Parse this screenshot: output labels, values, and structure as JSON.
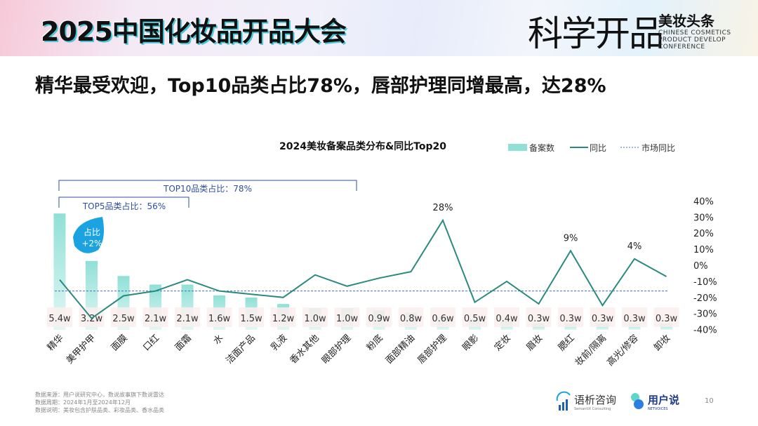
{
  "banner": {
    "title": "2025中国化妆品开品大会",
    "slogan": "科学开品",
    "brand": "美妆头条",
    "english_lines": [
      "CHINESE COSMETICS",
      "PRODUCT DEVELOP",
      "CONFERENCE"
    ]
  },
  "headline": "精华最受欢迎，Top10品类占比78%，唇部护理同增最高，达28%",
  "chart_data": {
    "type": "bar+line",
    "title": "2024美妆备案品类分布&同比Top20",
    "legend": [
      "备案数",
      "同比",
      "市场同比"
    ],
    "legend_placement": "top-right",
    "categories": [
      "精华",
      "美甲护甲",
      "面膜",
      "口红",
      "面霜",
      "水",
      "洁面产品",
      "乳液",
      "香水其他",
      "眼部护理",
      "粉底",
      "面部精油",
      "唇部护理",
      "眼影",
      "定妆",
      "眉妆",
      "腮红",
      "妆前/隔离",
      "高光/修容",
      "卸妆"
    ],
    "series": [
      {
        "name": "备案数",
        "type": "bar",
        "unit": "w",
        "values": [
          5.4,
          3.2,
          2.5,
          2.1,
          2.1,
          1.6,
          1.5,
          1.2,
          1.0,
          1.0,
          0.9,
          0.8,
          0.6,
          0.5,
          0.4,
          0.3,
          0.3,
          0.3,
          0.3,
          0.3
        ],
        "labels": [
          "5.4w",
          "3.2w",
          "2.5w",
          "2.1w",
          "2.1w",
          "1.6w",
          "1.5w",
          "1.2w",
          "1.0w",
          "1.0w",
          "0.9w",
          "0.8w",
          "0.6w",
          "0.5w",
          "0.4w",
          "0.3w",
          "0.3w",
          "0.3w",
          "0.3w",
          "0.3w"
        ]
      },
      {
        "name": "同比",
        "type": "line",
        "unit": "%",
        "values": [
          -9,
          -33,
          -19,
          -16,
          -9,
          -16,
          -18,
          -20,
          -6,
          -13,
          -8,
          -4,
          28,
          -23,
          -10,
          -24,
          9,
          -25,
          4,
          -7
        ]
      },
      {
        "name": "市场同比",
        "type": "line-dashed",
        "unit": "%",
        "value": -16
      }
    ],
    "y2_axis": {
      "range": [
        -40,
        40
      ],
      "ticks": [
        "40%",
        "30%",
        "20%",
        "10%",
        "0%",
        "-10%",
        "-20%",
        "-30%",
        "-40%"
      ]
    },
    "point_labels": [
      {
        "index": 12,
        "text": "28%"
      },
      {
        "index": 16,
        "text": "9%"
      },
      {
        "index": 18,
        "text": "4%"
      }
    ],
    "annotations": {
      "top10": "TOP10品类占比：78%",
      "top5": "TOP5品类占比：56%",
      "bubble_line1": "占比",
      "bubble_line2": "+2%"
    },
    "colors": {
      "bar": "#8fe0d6",
      "line": "#2a8a7e",
      "market": "#4a6fb5",
      "bracket": "#2f4fa2",
      "bubble": "#1aa3e0",
      "label_bg": "#fcefef"
    },
    "grid": false
  },
  "footer": {
    "lines": [
      "数据来源：用户说研究中心，数说故事旗下数说雷达",
      "数据周期：2024年1月至2024年12月",
      "数据说明：美妆包含护肤品类、彩妆品类、香水品类"
    ],
    "logo1_name": "语析咨询",
    "logo1_sub": "SemantiX Consulting",
    "logo2_name": "用户说",
    "logo2_sub": "NETVOICES",
    "page": "10"
  }
}
